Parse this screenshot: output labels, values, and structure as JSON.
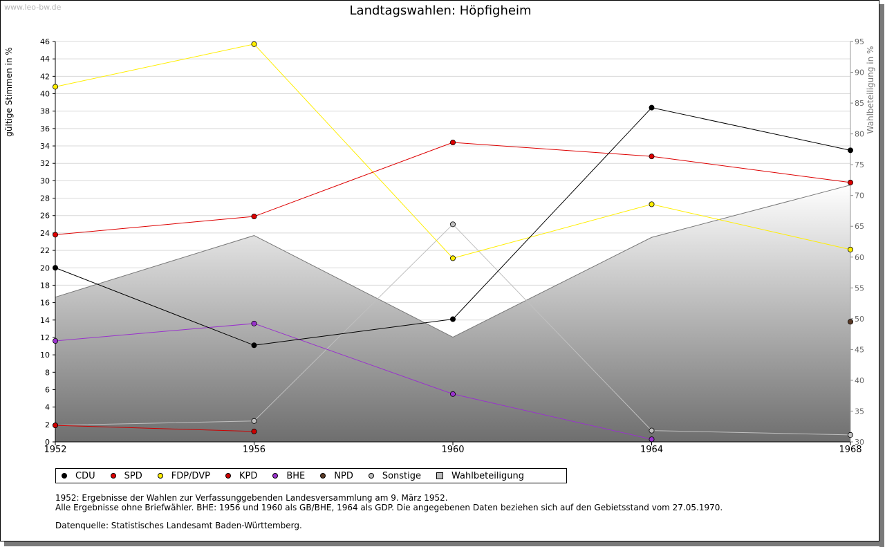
{
  "watermark": "www.leo-bw.de",
  "notes": [
    "1952: Ergebnisse der Wahlen zur Verfassunggebenden Landesversammlung am 9. März 1952.",
    "Alle Ergebnisse ohne Briefwähler. BHE: 1956 und 1960 als GB/BHE, 1964 als GDP. Die angegebenen Daten beziehen sich auf den Gebietsstand vom 27.05.1970.",
    "Datenquelle: Statistisches Landesamt Baden-Württemberg."
  ],
  "chart_data": {
    "type": "line",
    "title": "Landtagswahlen: Höpfigheim",
    "ylabel": "gültige Stimmen in %",
    "y2label": "Wahlbeteiligung in %",
    "x": [
      1952,
      1956,
      1960,
      1964,
      1968
    ],
    "x_tick_labels": [
      "1952",
      "1956",
      "1960",
      "1964",
      "1968"
    ],
    "ylim": [
      0,
      46
    ],
    "y_ticks": [
      0,
      2,
      4,
      6,
      8,
      10,
      12,
      14,
      16,
      18,
      20,
      22,
      24,
      26,
      28,
      30,
      32,
      34,
      36,
      38,
      40,
      42,
      44,
      46
    ],
    "y2lim": [
      30,
      95
    ],
    "y2_ticks": [
      30,
      35,
      40,
      45,
      50,
      55,
      60,
      65,
      70,
      75,
      80,
      85,
      90,
      95
    ],
    "grid": true,
    "legend_position": "bottom",
    "series": [
      {
        "name": "CDU",
        "color": "#000000",
        "points": [
          [
            1952,
            20.0
          ],
          [
            1956,
            11.1
          ],
          [
            1960,
            14.1
          ],
          [
            1964,
            38.4
          ],
          [
            1968,
            33.5
          ]
        ]
      },
      {
        "name": "SPD",
        "color": "#dd0000",
        "points": [
          [
            1952,
            23.8
          ],
          [
            1956,
            25.9
          ],
          [
            1960,
            34.4
          ],
          [
            1964,
            32.8
          ],
          [
            1968,
            29.8
          ]
        ]
      },
      {
        "name": "FDP/DVP",
        "color": "#ffee00",
        "points": [
          [
            1952,
            40.8
          ],
          [
            1956,
            45.7
          ],
          [
            1960,
            21.1
          ],
          [
            1964,
            27.3
          ],
          [
            1968,
            22.1
          ]
        ]
      },
      {
        "name": "KPD",
        "color": "#cc0000",
        "points": [
          [
            1952,
            1.9
          ],
          [
            1956,
            1.2
          ]
        ]
      },
      {
        "name": "BHE",
        "color": "#9933cc",
        "points": [
          [
            1952,
            11.6
          ],
          [
            1956,
            13.6
          ],
          [
            1960,
            5.5
          ],
          [
            1964,
            0.3
          ]
        ]
      },
      {
        "name": "NPD",
        "color": "#5a3a26",
        "points": [
          [
            1968,
            13.8
          ]
        ]
      },
      {
        "name": "Sonstige",
        "color": "#c0c0c0",
        "points": [
          [
            1952,
            1.9
          ],
          [
            1956,
            2.4
          ],
          [
            1960,
            25.0
          ],
          [
            1964,
            1.3
          ],
          [
            1968,
            0.8
          ]
        ]
      }
    ],
    "area_series": {
      "name": "Wahlbeteiligung",
      "axis": "right",
      "color": "#aaaaaa",
      "points": [
        [
          1952,
          53.5
        ],
        [
          1956,
          63.5
        ],
        [
          1960,
          47.0
        ],
        [
          1964,
          63.2
        ],
        [
          1968,
          71.7
        ]
      ]
    }
  }
}
